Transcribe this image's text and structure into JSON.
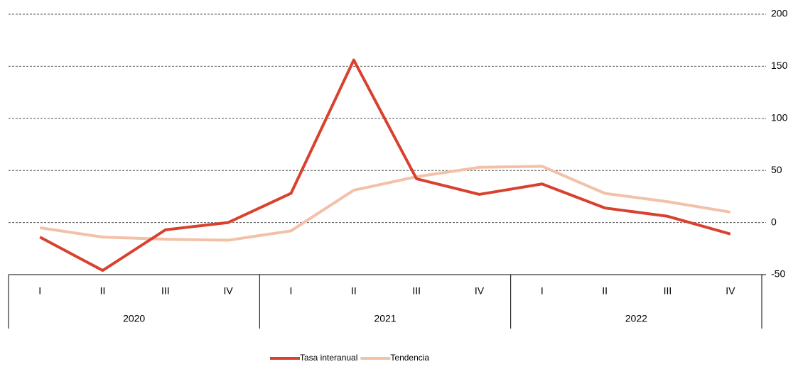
{
  "chart_data": {
    "type": "line",
    "categories": [
      "I",
      "II",
      "III",
      "IV",
      "I",
      "II",
      "III",
      "IV",
      "I",
      "II",
      "III",
      "IV"
    ],
    "groups": [
      "2020",
      "2021",
      "2022"
    ],
    "series": [
      {
        "name": "Tasa interanual",
        "color": "#d9412f",
        "values": [
          -14,
          -46,
          -7,
          0,
          28,
          156,
          42,
          27,
          37,
          14,
          6,
          -11
        ]
      },
      {
        "name": "Tendencia",
        "color": "#f3c0a8",
        "values": [
          -5,
          -14,
          -16,
          -17,
          -8,
          31,
          44,
          53,
          54,
          28,
          20,
          10
        ]
      }
    ],
    "ylim": [
      -50,
      200
    ],
    "yticks": [
      -50,
      0,
      50,
      100,
      150,
      200
    ],
    "grid": true,
    "legend": "bottom"
  }
}
